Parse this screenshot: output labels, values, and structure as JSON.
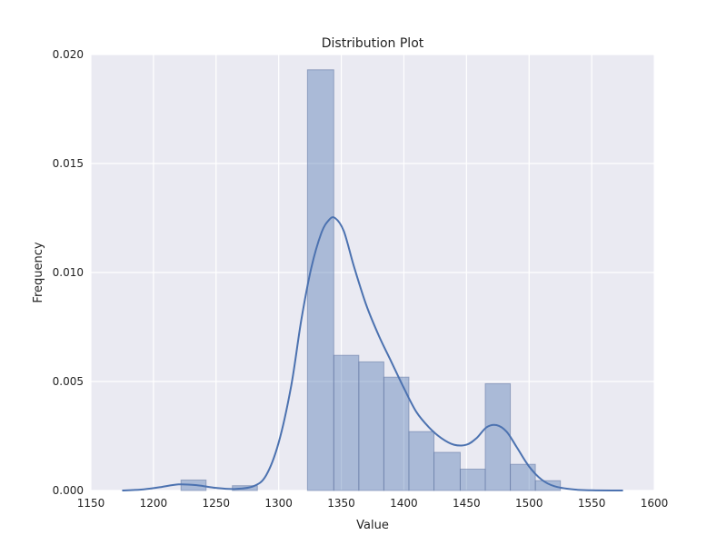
{
  "chart_data": {
    "type": "bar",
    "title": "Distribution Plot",
    "xlabel": "Value",
    "ylabel": "Frequency",
    "xlim": [
      1150,
      1600
    ],
    "ylim": [
      0,
      0.02
    ],
    "x_ticks": [
      {
        "value": 1150,
        "label": "1150"
      },
      {
        "value": 1200,
        "label": "1200"
      },
      {
        "value": 1250,
        "label": "1250"
      },
      {
        "value": 1300,
        "label": "1300"
      },
      {
        "value": 1350,
        "label": "1350"
      },
      {
        "value": 1400,
        "label": "1400"
      },
      {
        "value": 1450,
        "label": "1450"
      },
      {
        "value": 1500,
        "label": "1500"
      },
      {
        "value": 1550,
        "label": "1550"
      },
      {
        "value": 1600,
        "label": "1600"
      }
    ],
    "y_ticks": [
      {
        "value": 0.0,
        "label": "0.000"
      },
      {
        "value": 0.005,
        "label": "0.005"
      },
      {
        "value": 0.01,
        "label": "0.010"
      },
      {
        "value": 0.015,
        "label": "0.015"
      },
      {
        "value": 0.02,
        "label": "0.020"
      }
    ],
    "grid": true,
    "histogram": {
      "bins": [
        {
          "x0": 1222,
          "x1": 1242,
          "density": 0.00048
        },
        {
          "x0": 1242,
          "x1": 1263,
          "density": 0.0
        },
        {
          "x0": 1263,
          "x1": 1283,
          "density": 0.00022
        },
        {
          "x0": 1283,
          "x1": 1303,
          "density": 0.0
        },
        {
          "x0": 1303,
          "x1": 1323,
          "density": 0.0
        },
        {
          "x0": 1323,
          "x1": 1344,
          "density": 0.0193
        },
        {
          "x0": 1344,
          "x1": 1364,
          "density": 0.0062
        },
        {
          "x0": 1364,
          "x1": 1384,
          "density": 0.0059
        },
        {
          "x0": 1384,
          "x1": 1404,
          "density": 0.0052
        },
        {
          "x0": 1404,
          "x1": 1424,
          "density": 0.0027
        },
        {
          "x0": 1424,
          "x1": 1445,
          "density": 0.00175
        },
        {
          "x0": 1445,
          "x1": 1465,
          "density": 0.00098
        },
        {
          "x0": 1465,
          "x1": 1485,
          "density": 0.0049
        },
        {
          "x0": 1485,
          "x1": 1505,
          "density": 0.0012
        },
        {
          "x0": 1505,
          "x1": 1525,
          "density": 0.00045
        }
      ]
    },
    "kde": {
      "points": [
        [
          1175,
          0.0
        ],
        [
          1190,
          4e-05
        ],
        [
          1205,
          0.00015
        ],
        [
          1220,
          0.00028
        ],
        [
          1235,
          0.00024
        ],
        [
          1250,
          0.00012
        ],
        [
          1265,
          7e-05
        ],
        [
          1280,
          0.0002
        ],
        [
          1290,
          0.0007
        ],
        [
          1300,
          0.0022
        ],
        [
          1310,
          0.0048
        ],
        [
          1318,
          0.0078
        ],
        [
          1326,
          0.0102
        ],
        [
          1334,
          0.0118
        ],
        [
          1340,
          0.0124
        ],
        [
          1345,
          0.0125
        ],
        [
          1352,
          0.0119
        ],
        [
          1360,
          0.0103
        ],
        [
          1370,
          0.0085
        ],
        [
          1380,
          0.0071
        ],
        [
          1390,
          0.0059
        ],
        [
          1400,
          0.0047
        ],
        [
          1410,
          0.0036
        ],
        [
          1420,
          0.0029
        ],
        [
          1430,
          0.0024
        ],
        [
          1440,
          0.0021
        ],
        [
          1450,
          0.0021
        ],
        [
          1458,
          0.0024
        ],
        [
          1466,
          0.0029
        ],
        [
          1474,
          0.003
        ],
        [
          1482,
          0.0027
        ],
        [
          1490,
          0.002
        ],
        [
          1500,
          0.0011
        ],
        [
          1510,
          0.0005
        ],
        [
          1520,
          0.0002
        ],
        [
          1535,
          5e-05
        ],
        [
          1550,
          1e-05
        ],
        [
          1575,
          0.0
        ]
      ]
    },
    "colors": {
      "plot_background": "#eaeaf2",
      "gridline": "#ffffff",
      "bar_fill": "#4c72b0",
      "bar_opacity": 0.4,
      "bar_edge": "#6a7fa8",
      "kde_line": "#4c72b0"
    }
  }
}
